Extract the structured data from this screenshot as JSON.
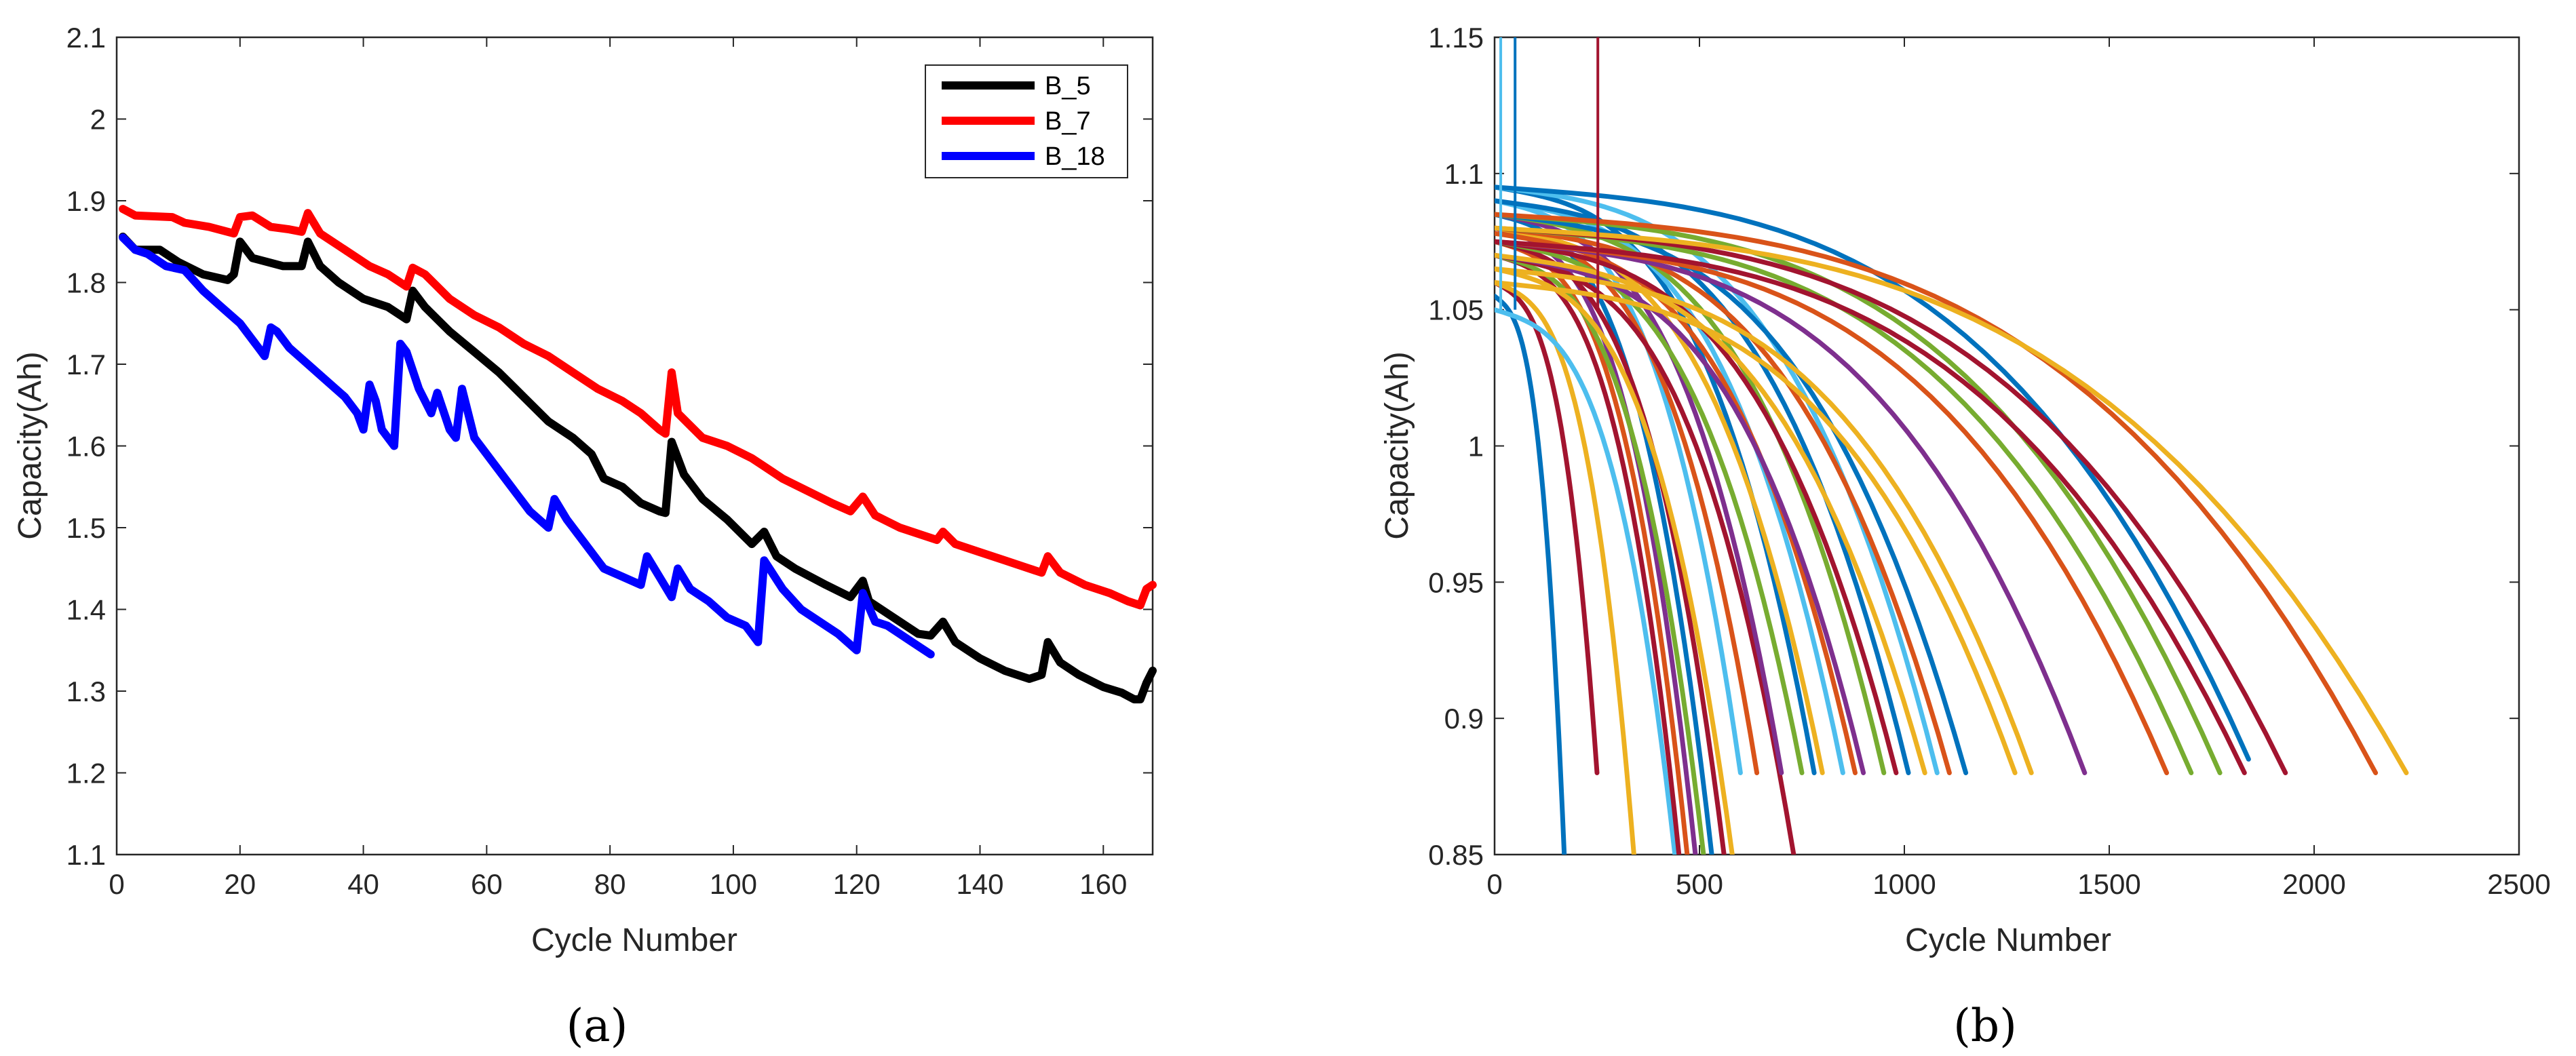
{
  "chart_data": [
    {
      "type": "line",
      "panel_label": "(a)",
      "xlabel": "Cycle Number",
      "ylabel": "Capacity(Ah)",
      "xlim": [
        0,
        168
      ],
      "ylim": [
        1.1,
        2.1
      ],
      "xticks": [
        0,
        20,
        40,
        60,
        80,
        100,
        120,
        140,
        160
      ],
      "yticks": [
        1.1,
        1.2,
        1.3,
        1.4,
        1.5,
        1.6,
        1.7,
        1.8,
        1.9,
        2.0,
        2.1
      ],
      "ytick_labels": [
        "1.1",
        "1.2",
        "1.3",
        "1.4",
        "1.5",
        "1.6",
        "1.7",
        "1.8",
        "1.9",
        "2",
        "2.1"
      ],
      "legend_position": "top-right",
      "series": [
        {
          "name": "B_5",
          "color": "#000000",
          "points": [
            [
              1,
              1.856
            ],
            [
              3,
              1.84
            ],
            [
              7,
              1.84
            ],
            [
              10,
              1.825
            ],
            [
              14,
              1.81
            ],
            [
              18,
              1.803
            ],
            [
              19,
              1.81
            ],
            [
              20,
              1.85
            ],
            [
              22,
              1.83
            ],
            [
              27,
              1.82
            ],
            [
              30,
              1.82
            ],
            [
              31,
              1.85
            ],
            [
              33,
              1.82
            ],
            [
              36,
              1.8
            ],
            [
              40,
              1.78
            ],
            [
              44,
              1.77
            ],
            [
              47,
              1.755
            ],
            [
              48,
              1.79
            ],
            [
              50,
              1.77
            ],
            [
              54,
              1.74
            ],
            [
              58,
              1.715
            ],
            [
              62,
              1.69
            ],
            [
              66,
              1.66
            ],
            [
              70,
              1.63
            ],
            [
              74,
              1.61
            ],
            [
              77,
              1.59
            ],
            [
              79,
              1.56
            ],
            [
              82,
              1.55
            ],
            [
              85,
              1.53
            ],
            [
              88,
              1.52
            ],
            [
              89,
              1.518
            ],
            [
              90,
              1.605
            ],
            [
              92,
              1.565
            ],
            [
              95,
              1.535
            ],
            [
              99,
              1.51
            ],
            [
              103,
              1.48
            ],
            [
              105,
              1.495
            ],
            [
              107,
              1.465
            ],
            [
              110,
              1.45
            ],
            [
              115,
              1.43
            ],
            [
              119,
              1.415
            ],
            [
              121,
              1.435
            ],
            [
              122,
              1.41
            ],
            [
              126,
              1.39
            ],
            [
              130,
              1.37
            ],
            [
              132,
              1.368
            ],
            [
              134,
              1.385
            ],
            [
              136,
              1.36
            ],
            [
              140,
              1.34
            ],
            [
              144,
              1.325
            ],
            [
              148,
              1.315
            ],
            [
              150,
              1.32
            ],
            [
              151,
              1.36
            ],
            [
              153,
              1.335
            ],
            [
              156,
              1.32
            ],
            [
              160,
              1.305
            ],
            [
              163,
              1.298
            ],
            [
              165,
              1.29
            ],
            [
              166,
              1.29
            ],
            [
              167,
              1.31
            ],
            [
              168,
              1.325
            ]
          ]
        },
        {
          "name": "B_7",
          "color": "#ff0000",
          "points": [
            [
              1,
              1.89
            ],
            [
              3,
              1.882
            ],
            [
              9,
              1.88
            ],
            [
              11,
              1.873
            ],
            [
              15,
              1.868
            ],
            [
              19,
              1.86
            ],
            [
              20,
              1.88
            ],
            [
              22,
              1.882
            ],
            [
              25,
              1.868
            ],
            [
              28,
              1.865
            ],
            [
              30,
              1.862
            ],
            [
              31,
              1.885
            ],
            [
              33,
              1.86
            ],
            [
              37,
              1.84
            ],
            [
              41,
              1.82
            ],
            [
              44,
              1.81
            ],
            [
              47,
              1.795
            ],
            [
              48,
              1.818
            ],
            [
              50,
              1.81
            ],
            [
              54,
              1.78
            ],
            [
              58,
              1.76
            ],
            [
              62,
              1.745
            ],
            [
              66,
              1.725
            ],
            [
              70,
              1.71
            ],
            [
              74,
              1.69
            ],
            [
              78,
              1.67
            ],
            [
              82,
              1.655
            ],
            [
              85,
              1.64
            ],
            [
              88,
              1.62
            ],
            [
              89,
              1.615
            ],
            [
              90,
              1.69
            ],
            [
              91,
              1.64
            ],
            [
              95,
              1.61
            ],
            [
              99,
              1.6
            ],
            [
              103,
              1.585
            ],
            [
              105,
              1.575
            ],
            [
              108,
              1.56
            ],
            [
              112,
              1.545
            ],
            [
              116,
              1.53
            ],
            [
              119,
              1.52
            ],
            [
              121,
              1.538
            ],
            [
              123,
              1.515
            ],
            [
              127,
              1.5
            ],
            [
              131,
              1.49
            ],
            [
              133,
              1.485
            ],
            [
              134,
              1.495
            ],
            [
              136,
              1.48
            ],
            [
              140,
              1.47
            ],
            [
              144,
              1.46
            ],
            [
              148,
              1.45
            ],
            [
              150,
              1.445
            ],
            [
              151,
              1.465
            ],
            [
              153,
              1.445
            ],
            [
              157,
              1.43
            ],
            [
              161,
              1.42
            ],
            [
              164,
              1.41
            ],
            [
              166,
              1.405
            ],
            [
              167,
              1.425
            ],
            [
              168,
              1.43
            ]
          ]
        },
        {
          "name": "B_18",
          "color": "#0000ff",
          "points": [
            [
              1,
              1.855
            ],
            [
              3,
              1.84
            ],
            [
              5,
              1.835
            ],
            [
              8,
              1.82
            ],
            [
              11,
              1.815
            ],
            [
              14,
              1.79
            ],
            [
              17,
              1.77
            ],
            [
              20,
              1.75
            ],
            [
              22,
              1.73
            ],
            [
              23,
              1.72
            ],
            [
              24,
              1.71
            ],
            [
              25,
              1.745
            ],
            [
              26,
              1.74
            ],
            [
              28,
              1.72
            ],
            [
              31,
              1.7
            ],
            [
              34,
              1.68
            ],
            [
              37,
              1.66
            ],
            [
              39,
              1.64
            ],
            [
              40,
              1.62
            ],
            [
              41,
              1.675
            ],
            [
              42,
              1.655
            ],
            [
              43,
              1.62
            ],
            [
              45,
              1.6
            ],
            [
              46,
              1.725
            ],
            [
              47,
              1.715
            ],
            [
              49,
              1.67
            ],
            [
              51,
              1.64
            ],
            [
              52,
              1.665
            ],
            [
              54,
              1.62
            ],
            [
              55,
              1.61
            ],
            [
              56,
              1.67
            ],
            [
              58,
              1.61
            ],
            [
              61,
              1.58
            ],
            [
              64,
              1.55
            ],
            [
              67,
              1.52
            ],
            [
              70,
              1.5
            ],
            [
              71,
              1.535
            ],
            [
              73,
              1.51
            ],
            [
              76,
              1.48
            ],
            [
              79,
              1.45
            ],
            [
              82,
              1.44
            ],
            [
              85,
              1.43
            ],
            [
              86,
              1.465
            ],
            [
              88,
              1.44
            ],
            [
              90,
              1.415
            ],
            [
              91,
              1.45
            ],
            [
              93,
              1.425
            ],
            [
              96,
              1.41
            ],
            [
              99,
              1.39
            ],
            [
              102,
              1.38
            ],
            [
              104,
              1.36
            ],
            [
              105,
              1.46
            ],
            [
              108,
              1.425
            ],
            [
              111,
              1.4
            ],
            [
              114,
              1.385
            ],
            [
              117,
              1.37
            ],
            [
              120,
              1.35
            ],
            [
              121,
              1.42
            ],
            [
              123,
              1.385
            ],
            [
              125,
              1.38
            ],
            [
              127,
              1.37
            ],
            [
              129,
              1.36
            ],
            [
              131,
              1.35
            ],
            [
              132,
              1.345
            ]
          ]
        }
      ]
    },
    {
      "type": "line",
      "panel_label": "(b)",
      "xlabel": "Cycle Number",
      "ylabel": "Capacity(Ah)",
      "xlim": [
        0,
        2500
      ],
      "ylim": [
        0.85,
        1.15
      ],
      "xticks": [
        0,
        500,
        1000,
        1500,
        2000,
        2500
      ],
      "yticks": [
        0.85,
        0.9,
        0.95,
        1.0,
        1.05,
        1.1,
        1.15
      ],
      "ytick_labels": [
        "0.85",
        "0.9",
        "0.95",
        "1",
        "1.05",
        "1.1",
        "1.15"
      ],
      "series_note": "many cells; each series drawn as a degradation curve [start capacity, knee-end cycle]",
      "series": [
        {
          "color": "#0072BD",
          "start": 1.055,
          "end_cycle": 170,
          "end_cap": 0.85
        },
        {
          "color": "#A2142F",
          "start": 1.06,
          "end_cycle": 250,
          "end_cap": 0.88
        },
        {
          "color": "#EDB120",
          "start": 1.06,
          "end_cycle": 340,
          "end_cap": 0.85
        },
        {
          "color": "#4DBEEE",
          "start": 1.05,
          "end_cycle": 440,
          "end_cap": 0.85
        },
        {
          "color": "#A2142F",
          "start": 1.07,
          "end_cycle": 450,
          "end_cap": 0.85
        },
        {
          "color": "#D95319",
          "start": 1.075,
          "end_cycle": 470,
          "end_cap": 0.85
        },
        {
          "color": "#7E2F8E",
          "start": 1.08,
          "end_cycle": 490,
          "end_cap": 0.85
        },
        {
          "color": "#77AC30",
          "start": 1.07,
          "end_cycle": 510,
          "end_cap": 0.85
        },
        {
          "color": "#0072BD",
          "start": 1.085,
          "end_cycle": 530,
          "end_cap": 0.85
        },
        {
          "color": "#A2142F",
          "start": 1.075,
          "end_cycle": 560,
          "end_cap": 0.85
        },
        {
          "color": "#EDB120",
          "start": 1.065,
          "end_cycle": 580,
          "end_cap": 0.85
        },
        {
          "color": "#4DBEEE",
          "start": 1.09,
          "end_cycle": 600,
          "end_cap": 0.88
        },
        {
          "color": "#D95319",
          "start": 1.08,
          "end_cycle": 640,
          "end_cap": 0.88
        },
        {
          "color": "#A2142F",
          "start": 1.07,
          "end_cycle": 730,
          "end_cap": 0.85
        },
        {
          "color": "#7E2F8E",
          "start": 1.085,
          "end_cycle": 700,
          "end_cap": 0.88
        },
        {
          "color": "#77AC30",
          "start": 1.075,
          "end_cycle": 750,
          "end_cap": 0.88
        },
        {
          "color": "#0072BD",
          "start": 1.095,
          "end_cycle": 780,
          "end_cap": 0.88
        },
        {
          "color": "#EDB120",
          "start": 1.08,
          "end_cycle": 800,
          "end_cap": 0.88
        },
        {
          "color": "#4DBEEE",
          "start": 1.09,
          "end_cycle": 850,
          "end_cap": 0.88
        },
        {
          "color": "#D95319",
          "start": 1.078,
          "end_cycle": 880,
          "end_cap": 0.88
        },
        {
          "color": "#7E2F8E",
          "start": 1.07,
          "end_cycle": 900,
          "end_cap": 0.88
        },
        {
          "color": "#77AC30",
          "start": 1.085,
          "end_cycle": 950,
          "end_cap": 0.88
        },
        {
          "color": "#A2142F",
          "start": 1.075,
          "end_cycle": 980,
          "end_cap": 0.88
        },
        {
          "color": "#0072BD",
          "start": 1.09,
          "end_cycle": 1010,
          "end_cap": 0.88
        },
        {
          "color": "#EDB120",
          "start": 1.07,
          "end_cycle": 1050,
          "end_cap": 0.88
        },
        {
          "color": "#4DBEEE",
          "start": 1.095,
          "end_cycle": 1080,
          "end_cap": 0.88
        },
        {
          "color": "#D95319",
          "start": 1.08,
          "end_cycle": 1110,
          "end_cap": 0.88
        },
        {
          "color": "#0072BD",
          "start": 1.085,
          "end_cycle": 1150,
          "end_cap": 0.88
        },
        {
          "color": "#EDB120",
          "start": 1.06,
          "end_cycle": 1270,
          "end_cap": 0.88
        },
        {
          "color": "#EDB120",
          "start": 1.065,
          "end_cycle": 1310,
          "end_cap": 0.88
        },
        {
          "color": "#7E2F8E",
          "start": 1.075,
          "end_cycle": 1440,
          "end_cap": 0.88
        },
        {
          "color": "#D95319",
          "start": 1.075,
          "end_cycle": 1640,
          "end_cap": 0.88
        },
        {
          "color": "#77AC30",
          "start": 1.08,
          "end_cycle": 1700,
          "end_cap": 0.88
        },
        {
          "color": "#77AC30",
          "start": 1.085,
          "end_cycle": 1770,
          "end_cap": 0.88
        },
        {
          "color": "#A2142F",
          "start": 1.075,
          "end_cycle": 1830,
          "end_cap": 0.88
        },
        {
          "color": "#0072BD",
          "start": 1.095,
          "end_cycle": 1840,
          "end_cap": 0.885
        },
        {
          "color": "#A2142F",
          "start": 1.08,
          "end_cycle": 1930,
          "end_cap": 0.88
        },
        {
          "color": "#D95319",
          "start": 1.085,
          "end_cycle": 2150,
          "end_cap": 0.88
        },
        {
          "color": "#EDB120",
          "start": 1.08,
          "end_cycle": 2225,
          "end_cap": 0.88
        }
      ]
    }
  ]
}
